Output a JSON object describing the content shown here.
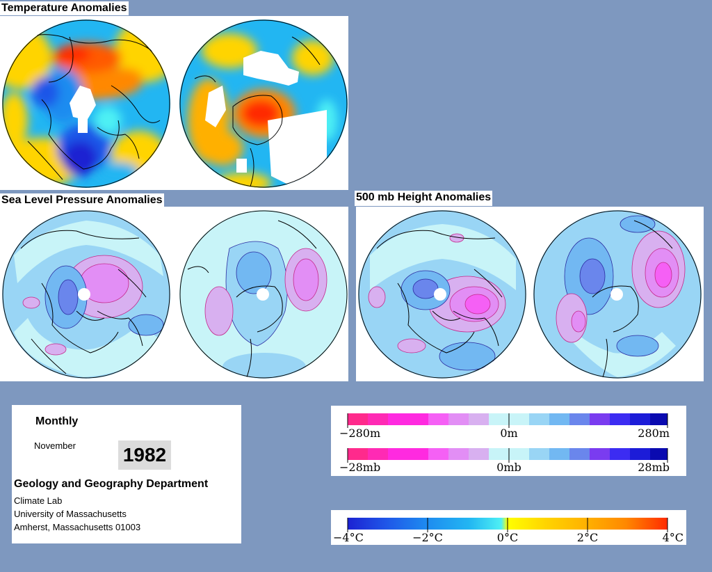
{
  "panels": {
    "temperature": {
      "title": "Temperature Anomalies"
    },
    "slp": {
      "title": "Sea Level Pressure Anomalies"
    },
    "height500": {
      "title": "500 mb Height Anomalies"
    }
  },
  "info": {
    "period": "Monthly",
    "month": "November",
    "year": "1982",
    "department": "Geology and Geography Department",
    "lab": "Climate Lab",
    "university": "University of Massachusetts",
    "address": "Amherst, Massachusetts 01003"
  },
  "legends": {
    "height": {
      "min_label": "−280m",
      "mid_label": "0m",
      "max_label": "280m"
    },
    "pressure": {
      "min_label": "−28mb",
      "mid_label": "0mb",
      "max_label": "28mb"
    },
    "temperature": {
      "labels": [
        "−4°C",
        "−2°C",
        "0°C",
        "2°C",
        "4°C"
      ]
    }
  },
  "colors": {
    "background": "#7e98bf",
    "pink_scale": [
      "#ff2a8c",
      "#ff2ab4",
      "#ff2ae0",
      "#f560f5",
      "#e28ef5",
      "#d8b0f0",
      "#d8d8f8",
      "#c8f4f8"
    ],
    "blue_scale": [
      "#c8f4f8",
      "#99d5f5",
      "#72b8f2",
      "#6a86ec",
      "#7a3cf0",
      "#3c2cf2",
      "#1c1cd8",
      "#0a0ab0"
    ],
    "temp_cold": [
      "#1c22d2",
      "#1f56e8",
      "#1e8cf0",
      "#22b6f2",
      "#2cd8f0",
      "#4ef0f4"
    ],
    "temp_warm": [
      "#ffff00",
      "#fff000",
      "#ffd400",
      "#ffb000",
      "#ff8800",
      "#ff5a00",
      "#ff2a00"
    ]
  }
}
